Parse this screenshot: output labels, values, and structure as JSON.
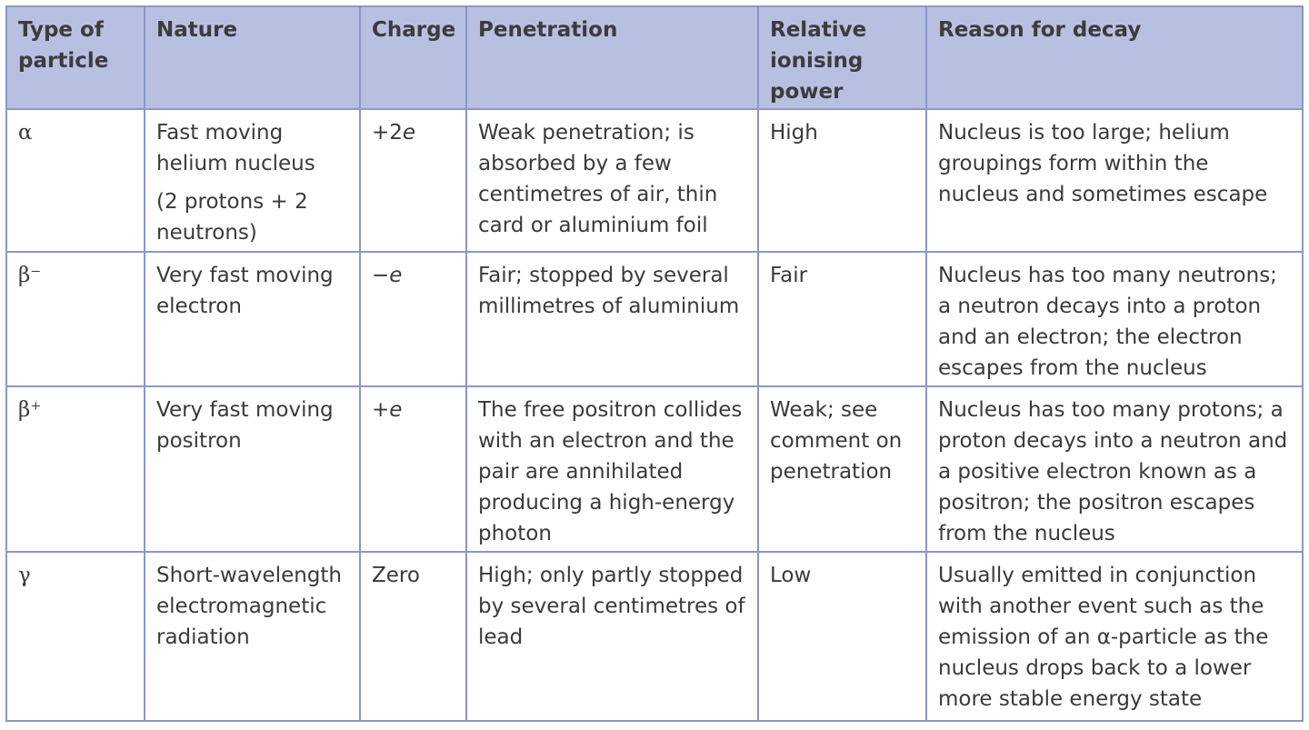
{
  "table": {
    "headers": [
      "Type of particle",
      "Nature",
      "Charge",
      "Penetration",
      "Relative ionising power",
      "Reason for decay"
    ],
    "rows": [
      {
        "particle": "α",
        "nature": "Fast moving helium nucleus",
        "nature_note": "(2 protons + 2 neutrons)",
        "charge_prefix": "+2",
        "charge_var": "e",
        "penetration": "Weak penetration; is absorbed by a few centimetres of air, thin card or aluminium foil",
        "ionising": "High",
        "reason": "Nucleus is too large; helium groupings form within the nucleus and sometimes escape"
      },
      {
        "particle": "β⁻",
        "nature": "Very fast moving electron",
        "charge_prefix": "−",
        "charge_var": "e",
        "penetration": "Fair; stopped by several millimetres of aluminium",
        "ionising": "Fair",
        "reason": "Nucleus has too many neutrons; a neutron decays into a proton and an electron; the electron escapes from the nucleus"
      },
      {
        "particle": "β⁺",
        "nature": "Very fast moving positron",
        "charge_prefix": "+",
        "charge_var": "e",
        "penetration": "The free positron collides with an electron and the pair are annihilated producing a high-energy photon",
        "ionising": "Weak; see comment on penetration",
        "reason": "Nucleus has too many protons; a proton decays into a neutron and a positive electron known as a positron; the positron escapes from the nucleus"
      },
      {
        "particle": "γ",
        "nature": "Short-wavelength electromagnetic radiation",
        "charge_prefix": "Zero",
        "charge_var": "",
        "penetration": "High; only partly stopped by several centimetres of lead",
        "ionising": "Low",
        "reason": "Usually emitted in conjunction with another event such as the emission of an α-particle as the nucleus drops back to a lower more stable energy state"
      }
    ]
  },
  "colors": {
    "header_bg": "#b8c0e2",
    "border": "#8a98c8",
    "text": "#3a3a3a"
  }
}
